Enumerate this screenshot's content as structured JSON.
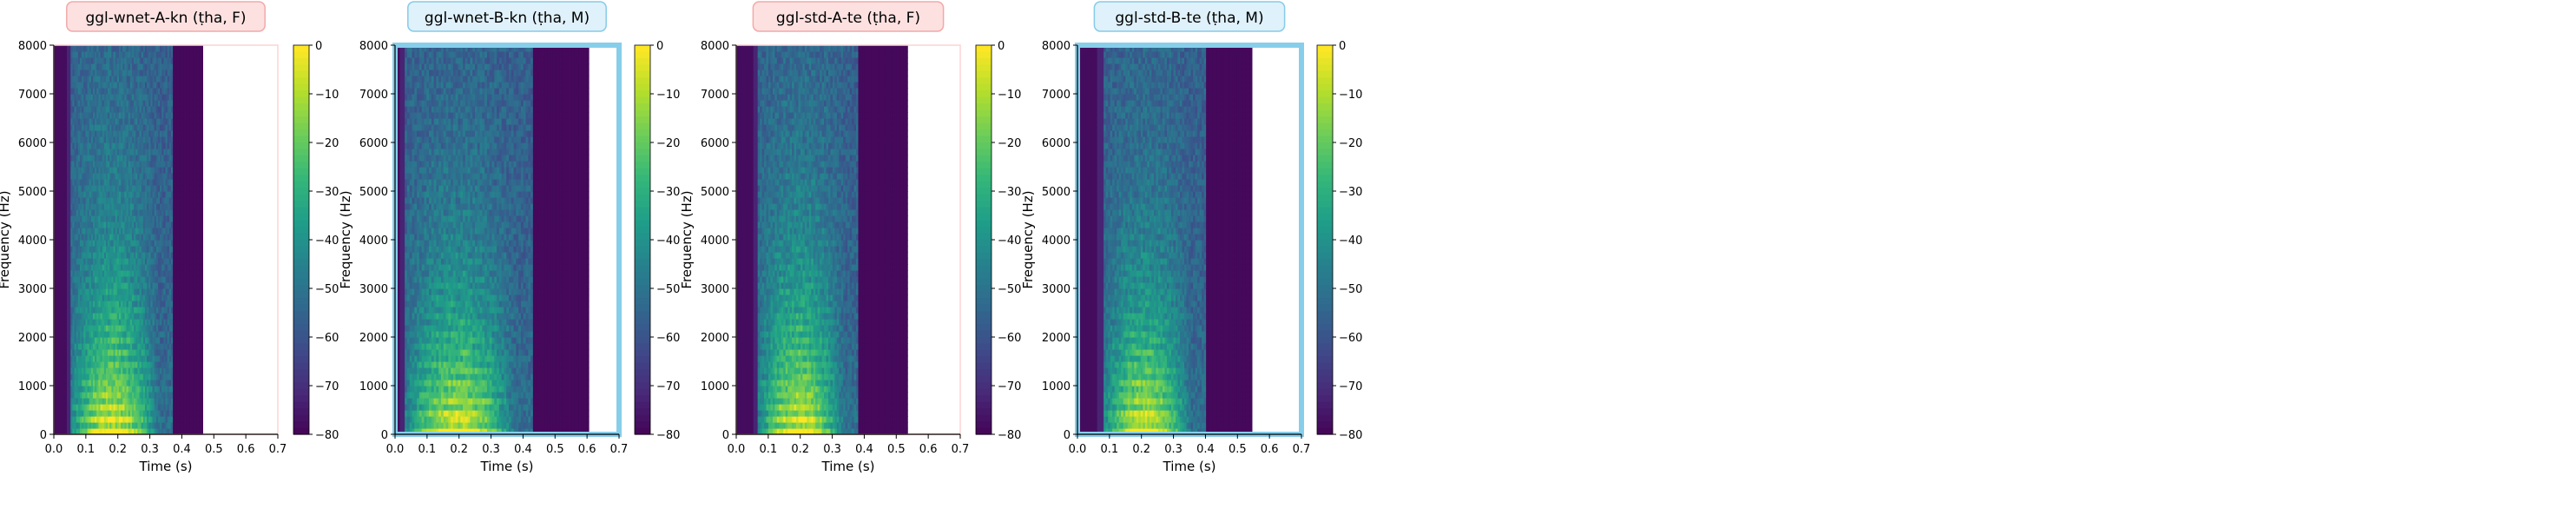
{
  "chart_data": [
    {
      "type": "heatmap",
      "title": "ggl-wnet-A-kn (ṭha, F)",
      "title_box_color": "#fde1e1",
      "title_box_border": "#f2a9a9",
      "frame_color": "#fcd4d4",
      "xlabel": "Time (s)",
      "ylabel": "Frequency (Hz)",
      "xlim": [
        0,
        0.7
      ],
      "ylim": [
        0,
        8000
      ],
      "xticks": [
        "0.0",
        "0.1",
        "0.2",
        "0.3",
        "0.4",
        "0.5",
        "0.6",
        "0.7"
      ],
      "yticks": [
        "0",
        "1000",
        "2000",
        "3000",
        "4000",
        "5000",
        "6000",
        "7000",
        "8000"
      ],
      "signal_end": 0.465,
      "speech_start": 0.035,
      "speech_end": 0.37,
      "colorbar": {
        "ticks": [
          "0",
          "−10",
          "−20",
          "−30",
          "−40",
          "−50",
          "−60",
          "−70",
          "−80"
        ],
        "range": [
          -80,
          0
        ]
      }
    },
    {
      "type": "heatmap",
      "title": "ggl-wnet-B-kn (ṭha, M)",
      "title_box_color": "#dff1fa",
      "title_box_border": "#86cbe8",
      "frame_color": "#87ceeb",
      "xlabel": "Time (s)",
      "ylabel": "Frequency (Hz)",
      "xlim": [
        0,
        0.7
      ],
      "ylim": [
        0,
        8000
      ],
      "xticks": [
        "0.0",
        "0.1",
        "0.2",
        "0.3",
        "0.4",
        "0.5",
        "0.6",
        "0.7"
      ],
      "yticks": [
        "0",
        "1000",
        "2000",
        "3000",
        "4000",
        "5000",
        "6000",
        "7000",
        "8000"
      ],
      "signal_end": 0.605,
      "speech_start": 0.01,
      "speech_end": 0.43,
      "colorbar": {
        "ticks": [
          "0",
          "−10",
          "−20",
          "−30",
          "−40",
          "−50",
          "−60",
          "−70",
          "−80"
        ],
        "range": [
          -80,
          0
        ]
      }
    },
    {
      "type": "heatmap",
      "title": "ggl-std-A-te (ṭha, F)",
      "title_box_color": "#fde1e1",
      "title_box_border": "#f2a9a9",
      "frame_color": "#fcd4d4",
      "xlabel": "Time (s)",
      "ylabel": "Frequency (Hz)",
      "xlim": [
        0,
        0.7
      ],
      "ylim": [
        0,
        8000
      ],
      "xticks": [
        "0.0",
        "0.1",
        "0.2",
        "0.3",
        "0.4",
        "0.5",
        "0.6",
        "0.7"
      ],
      "yticks": [
        "0",
        "1000",
        "2000",
        "3000",
        "4000",
        "5000",
        "6000",
        "7000",
        "8000"
      ],
      "signal_end": 0.535,
      "speech_start": 0.05,
      "speech_end": 0.38,
      "colorbar": {
        "ticks": [
          "0",
          "−10",
          "−20",
          "−30",
          "−40",
          "−50",
          "−60",
          "−70",
          "−80"
        ],
        "range": [
          -80,
          0
        ]
      }
    },
    {
      "type": "heatmap",
      "title": "ggl-std-B-te (ṭha, M)",
      "title_box_color": "#dff1fa",
      "title_box_border": "#86cbe8",
      "frame_color": "#87ceeb",
      "xlabel": "Time (s)",
      "ylabel": "Frequency (Hz)",
      "xlim": [
        0,
        0.7
      ],
      "ylim": [
        0,
        8000
      ],
      "xticks": [
        "0.0",
        "0.1",
        "0.2",
        "0.3",
        "0.4",
        "0.5",
        "0.6",
        "0.7"
      ],
      "yticks": [
        "0",
        "1000",
        "2000",
        "3000",
        "4000",
        "5000",
        "6000",
        "7000",
        "8000"
      ],
      "signal_end": 0.545,
      "speech_start": 0.06,
      "speech_end": 0.4,
      "colorbar": {
        "ticks": [
          "0",
          "−10",
          "−20",
          "−30",
          "−40",
          "−50",
          "−60",
          "−70",
          "−80"
        ],
        "range": [
          -80,
          0
        ]
      }
    }
  ]
}
